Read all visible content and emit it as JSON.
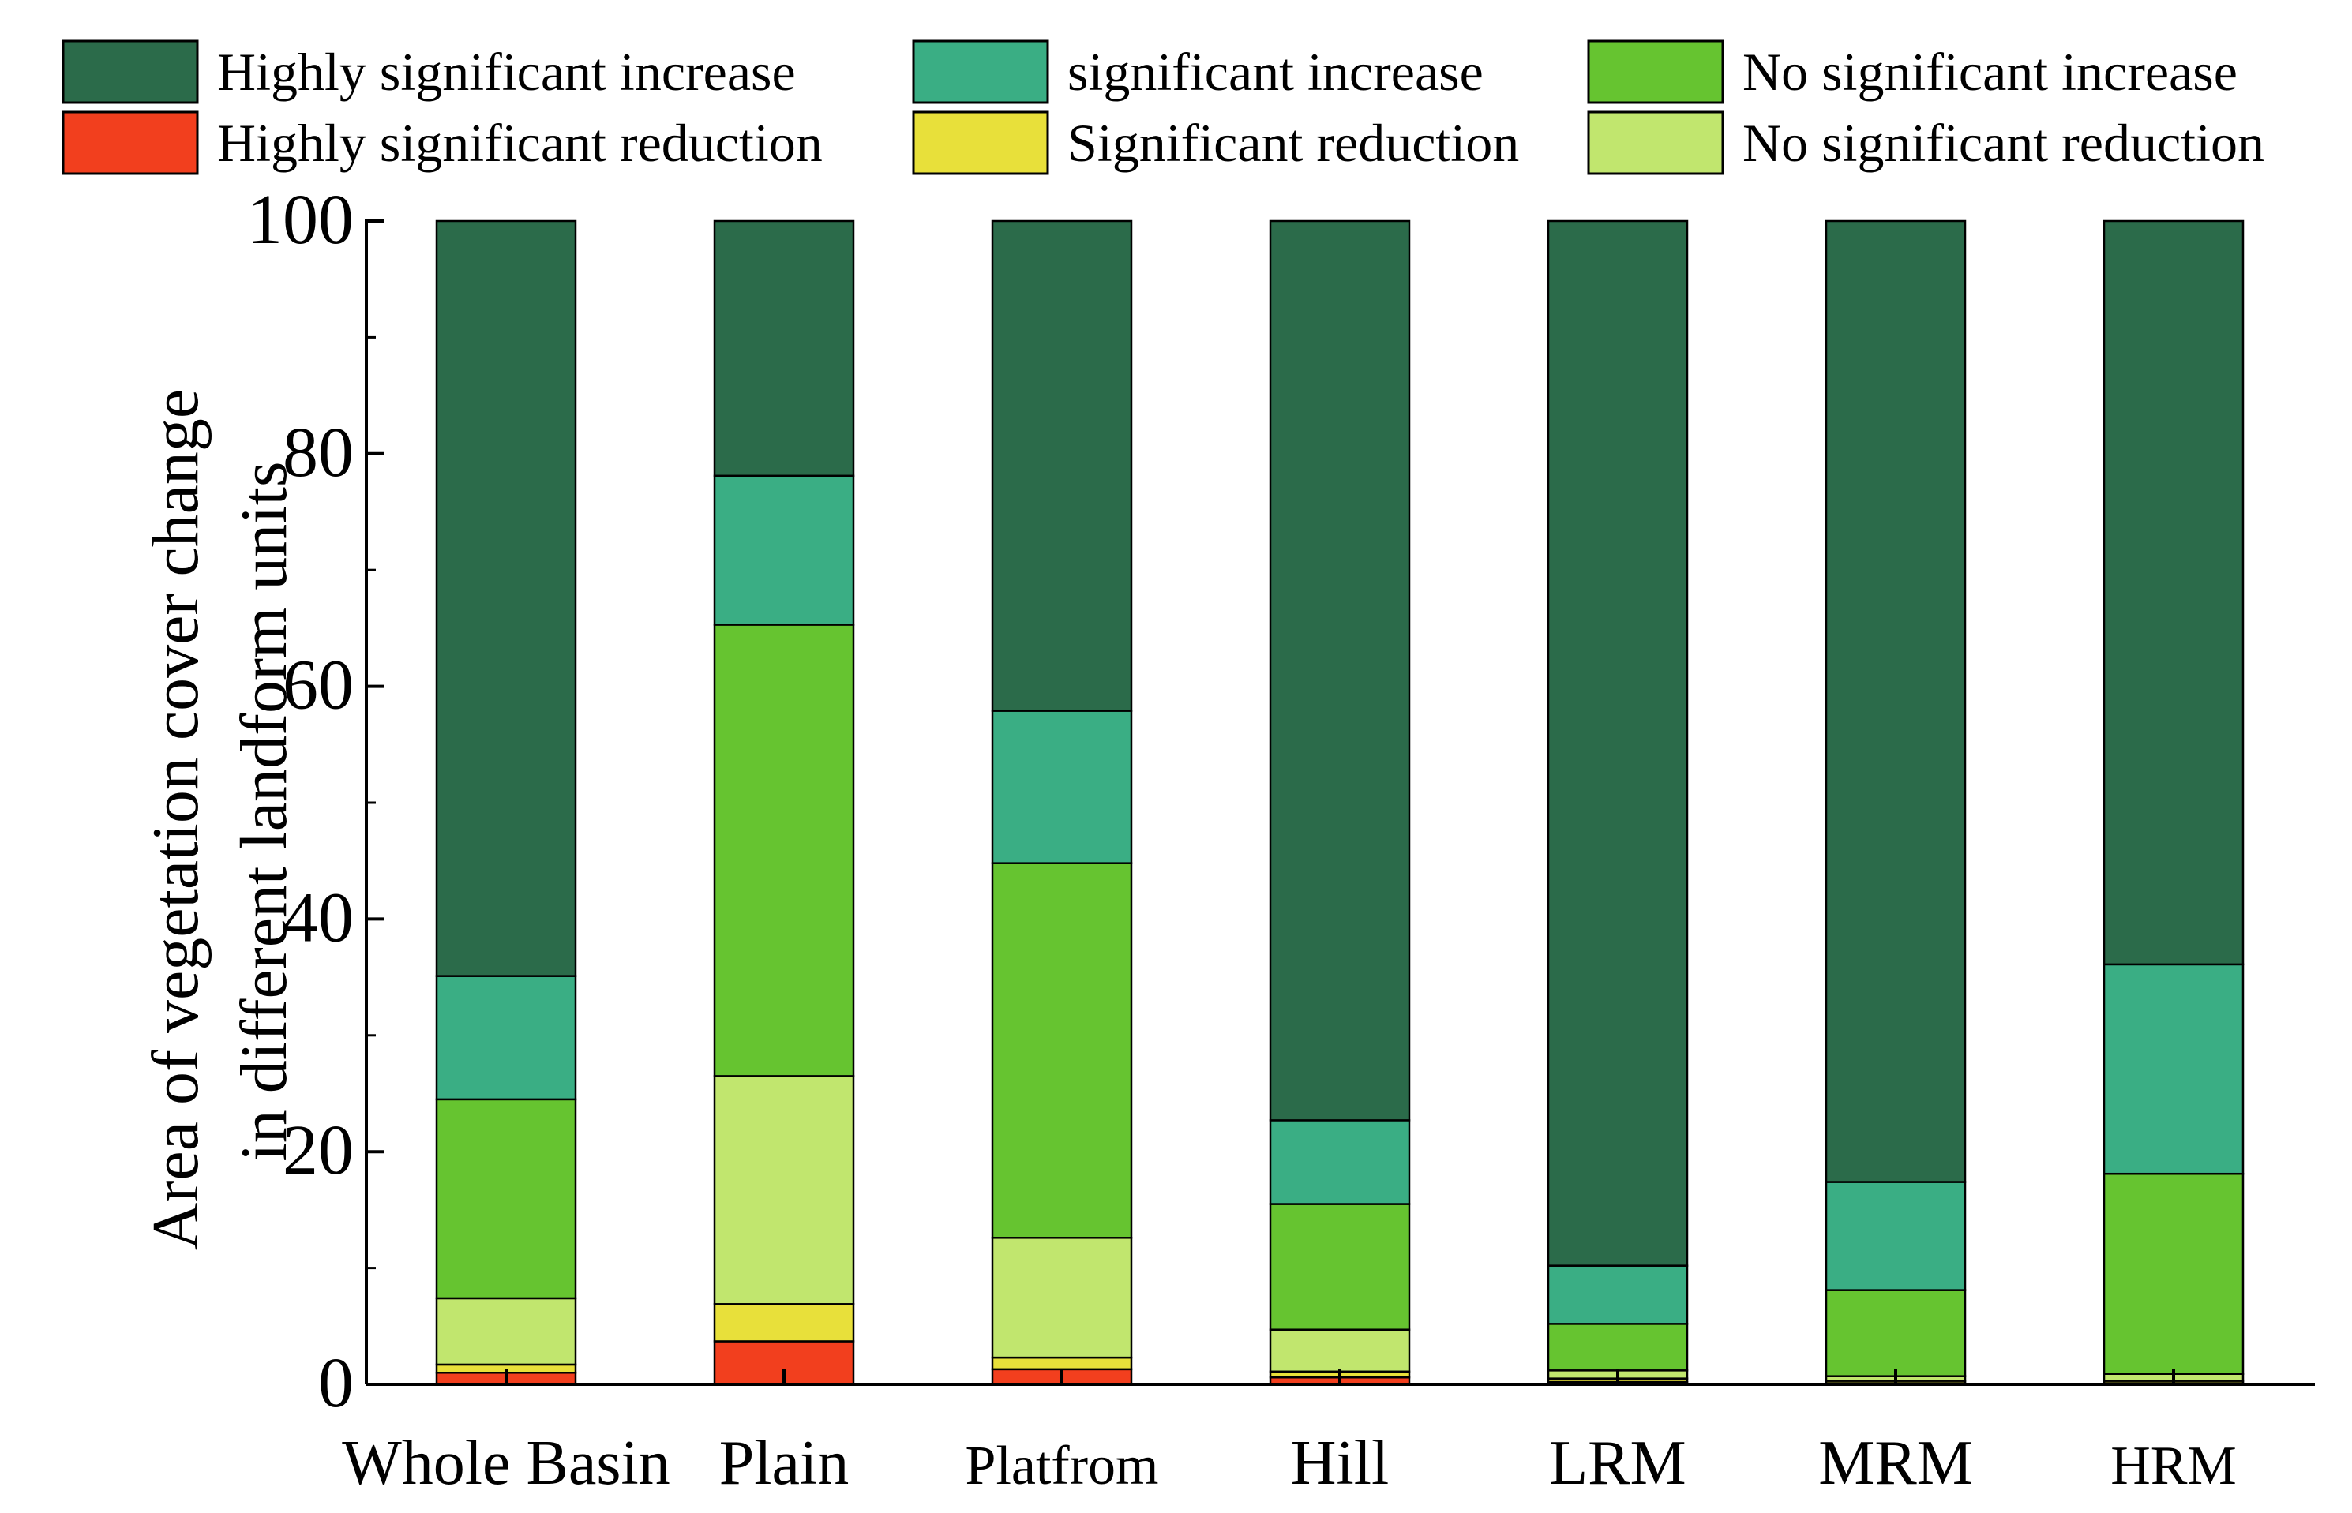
{
  "chart_data": {
    "type": "bar",
    "stacked": true,
    "title": "",
    "xlabel": "",
    "ylabel_lines": [
      "Area of vegetation cover change",
      "in different landform units"
    ],
    "ylim": [
      0,
      100
    ],
    "yticks": [
      "0",
      "20",
      "40",
      "60",
      "80",
      "100"
    ],
    "grid": false,
    "legend_position": "top",
    "categories": [
      "Whole Basin",
      "Plain",
      "Platfrom",
      "Hill",
      "LRM",
      "MRM",
      "HRM"
    ],
    "series": [
      {
        "name": "Highly significant reduction",
        "color": "#f23f1e",
        "values": [
          1.0,
          3.7,
          1.3,
          0.6,
          0.2,
          0.1,
          0.1
        ]
      },
      {
        "name": "Significant reduction",
        "color": "#e8e03a",
        "values": [
          0.7,
          3.2,
          1.0,
          0.5,
          0.3,
          0.2,
          0.2
        ]
      },
      {
        "name": "No significant reduction",
        "color": "#c1e66e",
        "values": [
          5.7,
          19.6,
          10.3,
          3.6,
          0.7,
          0.4,
          0.6
        ]
      },
      {
        "name": "No significant increase",
        "color": "#66c430",
        "values": [
          17.1,
          38.8,
          32.2,
          10.8,
          4.0,
          7.4,
          17.2
        ]
      },
      {
        "name": "significant increase",
        "color": "#3aae84",
        "values": [
          10.6,
          12.8,
          13.1,
          7.2,
          5.0,
          9.3,
          18.0
        ]
      },
      {
        "name": "Highly significant increase",
        "color": "#2b6b4a",
        "values": [
          64.9,
          21.9,
          42.1,
          77.3,
          89.8,
          82.6,
          63.9
        ]
      }
    ],
    "legend_order": [
      "Highly significant increase",
      "significant increase",
      "No significant increase",
      "Highly significant reduction",
      "Significant reduction",
      "No significant reduction"
    ]
  }
}
